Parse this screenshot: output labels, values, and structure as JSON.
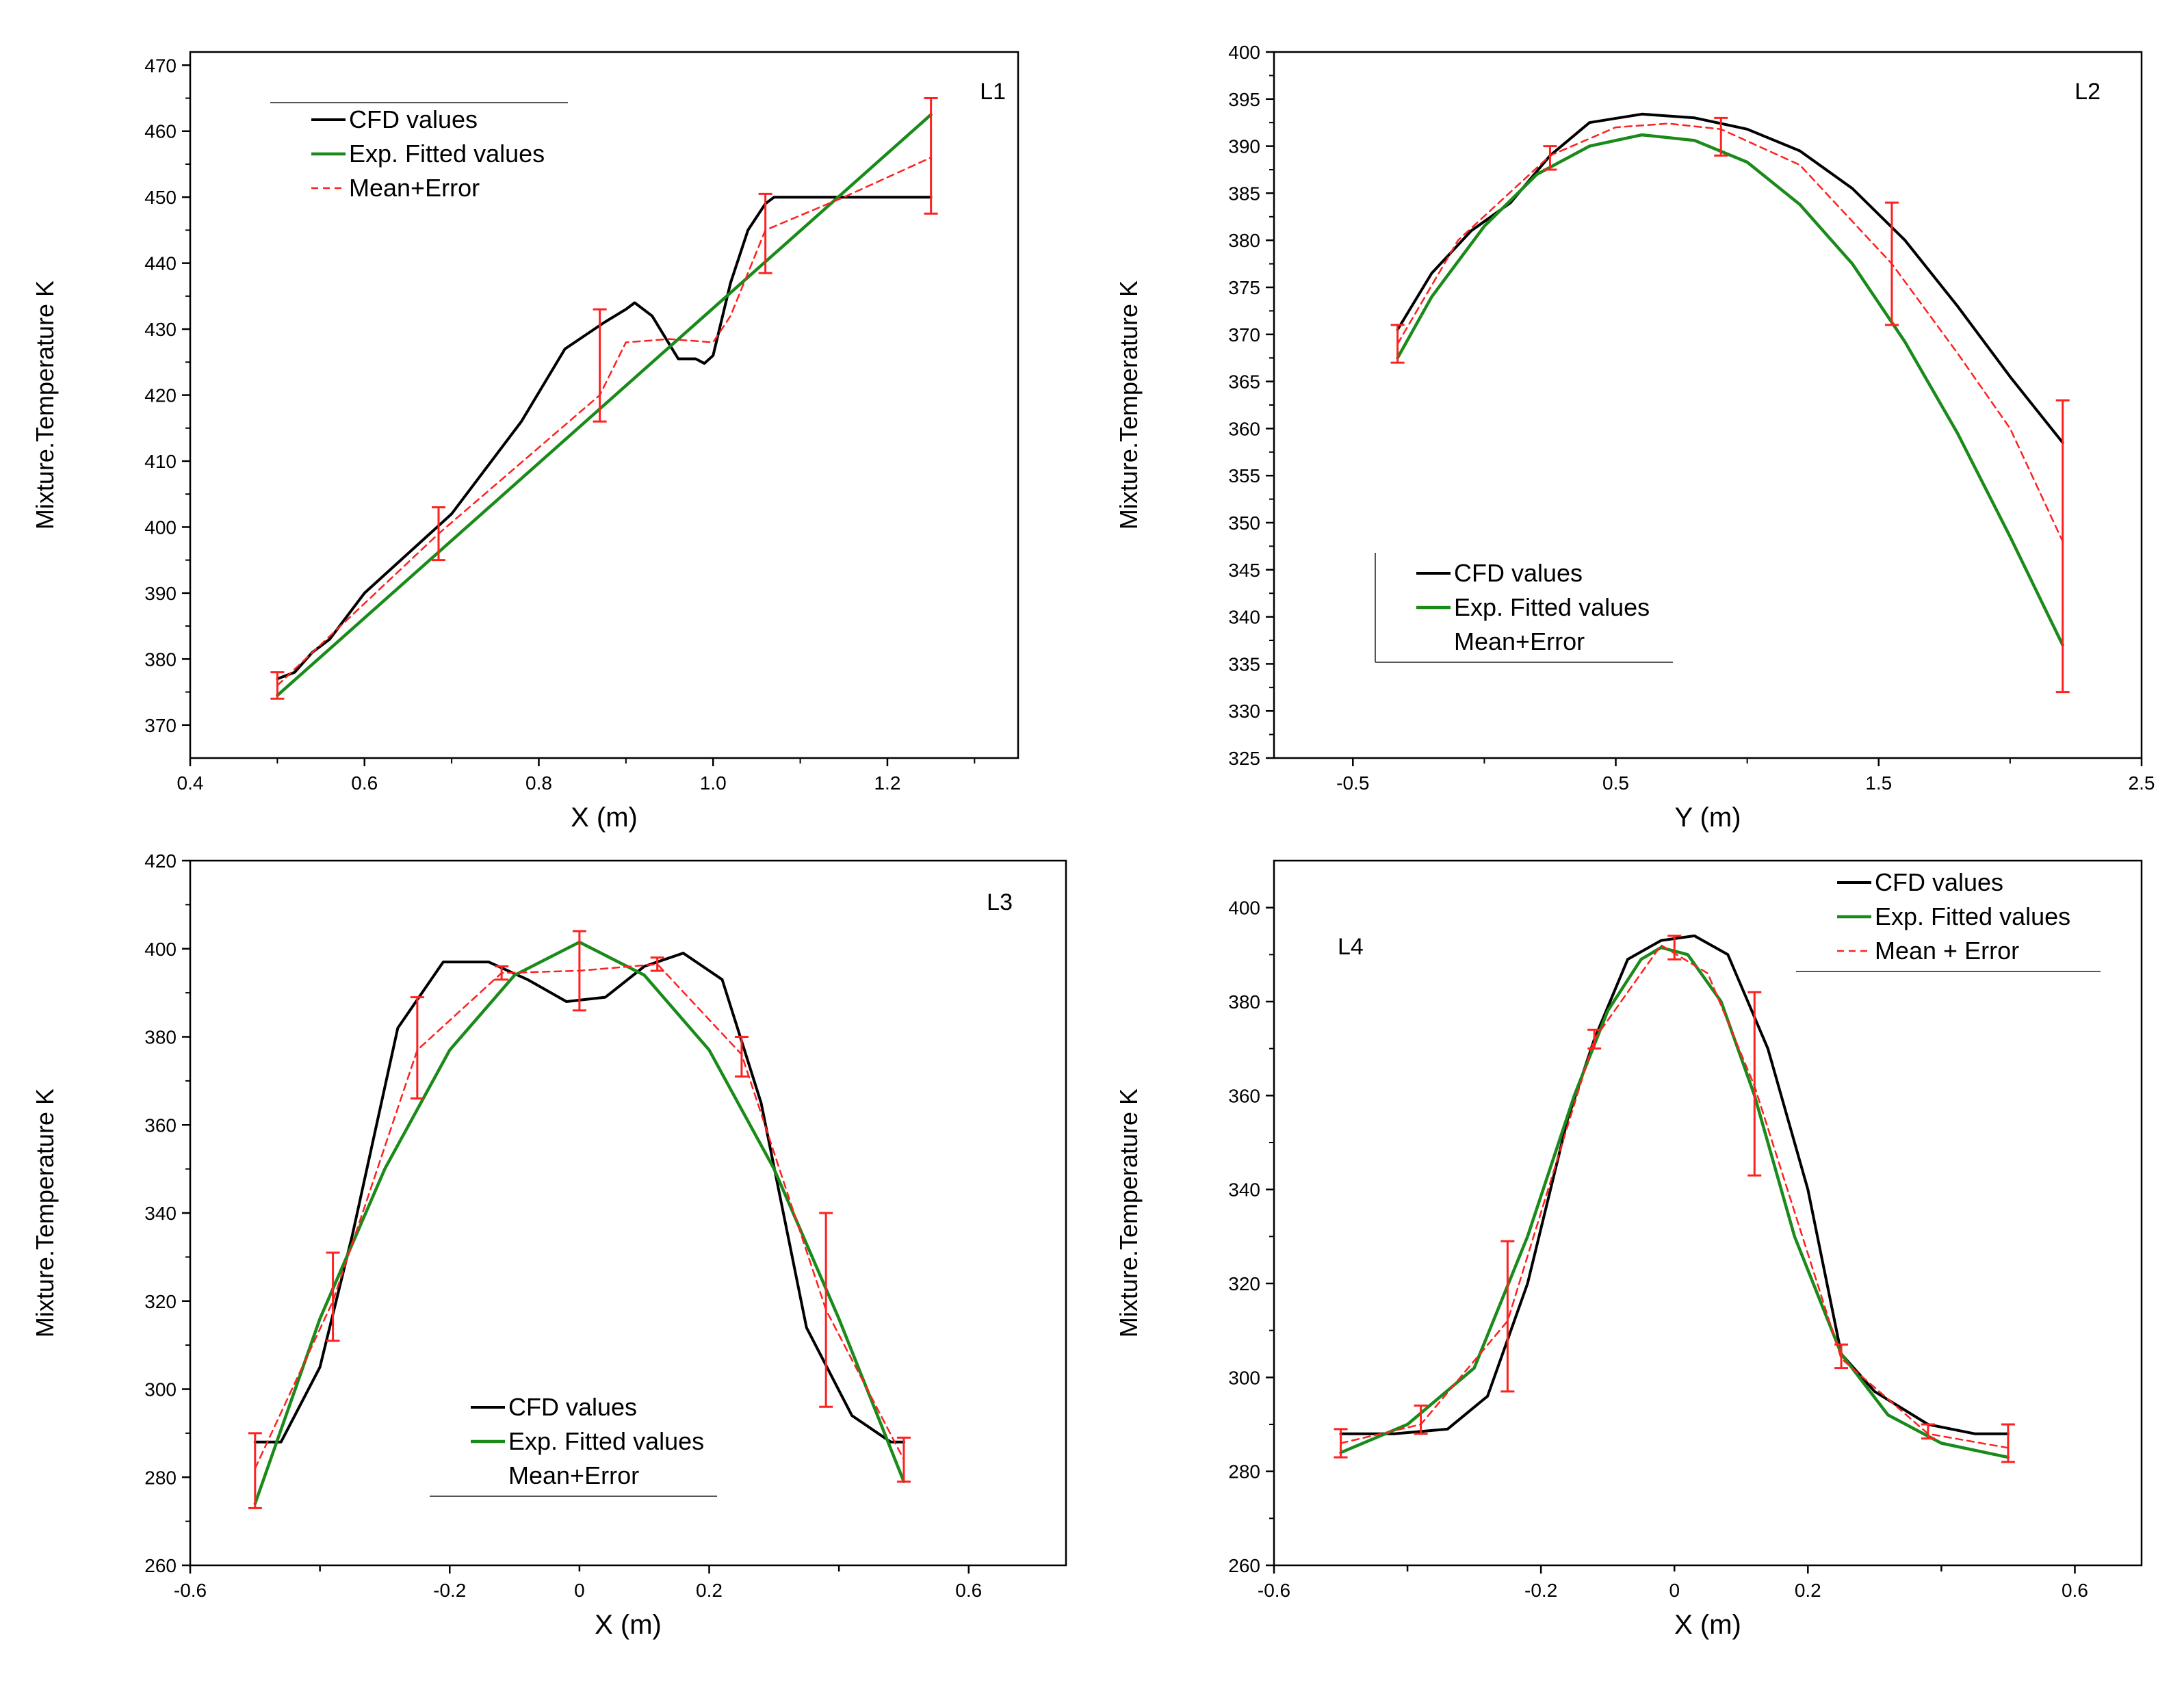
{
  "panels": [
    {
      "id": "L1",
      "panel_label": "L1",
      "legend_pos": "top-left",
      "legend": [
        {
          "label": "CFD values",
          "key": "cfd"
        },
        {
          "label": "Exp. Fitted values",
          "key": "exp"
        },
        {
          "label": "Mean+Error",
          "key": "mean"
        }
      ]
    },
    {
      "id": "L2",
      "panel_label": "L2",
      "legend_pos": "bottom-left",
      "legend": [
        {
          "label": "CFD values",
          "key": "cfd"
        },
        {
          "label": "Exp. Fitted values",
          "key": "exp"
        },
        {
          "label": "Mean+Error",
          "key": "mean"
        }
      ]
    },
    {
      "id": "L3",
      "panel_label": "L3",
      "legend_pos": "bottom-center",
      "legend": [
        {
          "label": "CFD values",
          "key": "cfd"
        },
        {
          "label": "Exp. Fitted values",
          "key": "exp"
        },
        {
          "label": "Mean+Error",
          "key": "mean"
        }
      ]
    },
    {
      "id": "L4",
      "panel_label": "L4",
      "legend_pos": "top-right",
      "legend": [
        {
          "label": "CFD values",
          "key": "cfd"
        },
        {
          "label": "Exp. Fitted values",
          "key": "exp"
        },
        {
          "label": "Mean + Error",
          "key": "mean"
        }
      ]
    }
  ],
  "colors": {
    "cfd": "#000000",
    "exp": "#1a8a1a",
    "mean": "#ff2020",
    "error_bar": "#ff2020",
    "axis": "#000000"
  },
  "chart_data": [
    {
      "type": "line",
      "panel": "L1",
      "xlabel": "X (m)",
      "ylabel": "Mixture.Temperature K",
      "xlim": [
        0.4,
        1.35
      ],
      "ylim": [
        365,
        472
      ],
      "xticks": [
        0.4,
        0.6,
        0.8,
        1.0,
        1.2
      ],
      "xtick_labels": [
        "0.4",
        "0.6",
        "0.8",
        "1.0",
        "1.2"
      ],
      "yticks": [
        370,
        380,
        390,
        400,
        410,
        420,
        430,
        440,
        450,
        460,
        470
      ],
      "ytick_labels": [
        "370",
        "380",
        "390",
        "400",
        "410",
        "420",
        "430",
        "440",
        "450",
        "460",
        "470"
      ],
      "series": [
        {
          "name": "CFD values",
          "key": "cfd",
          "x": [
            0.5,
            0.52,
            0.54,
            0.56,
            0.6,
            0.65,
            0.7,
            0.78,
            0.83,
            0.875,
            0.9,
            0.91,
            0.93,
            0.96,
            0.98,
            0.99,
            1.0,
            1.02,
            1.04,
            1.06,
            1.07,
            1.1,
            1.25
          ],
          "y": [
            377,
            378,
            381,
            383,
            390,
            396,
            402,
            416,
            427,
            431,
            433,
            434,
            432,
            425.5,
            425.5,
            424.8,
            426,
            437,
            445,
            449,
            450,
            450,
            450
          ]
        },
        {
          "name": "Exp. Fitted values",
          "key": "exp",
          "x": [
            0.5,
            1.25
          ],
          "y": [
            374.5,
            462.5
          ]
        },
        {
          "name": "Mean+Error",
          "key": "mean",
          "x": [
            0.5,
            0.685,
            0.87,
            0.9,
            0.95,
            1.0,
            1.02,
            1.06,
            1.15,
            1.25
          ],
          "y": [
            376,
            399,
            420,
            428,
            428.5,
            428,
            432,
            445,
            450,
            456
          ]
        }
      ],
      "error_bars": {
        "x": [
          0.5,
          0.685,
          0.87,
          1.06,
          1.25
        ],
        "low": [
          374,
          395,
          416,
          438.5,
          447.5
        ],
        "high": [
          378,
          403,
          433,
          450.5,
          465
        ]
      }
    },
    {
      "type": "line",
      "panel": "L2",
      "xlabel": "Y (m)",
      "ylabel": "Mixture.Temperature K",
      "xlim": [
        -0.8,
        2.5
      ],
      "ylim": [
        325,
        400
      ],
      "xticks": [
        -0.5,
        0.5,
        1.5,
        2.5
      ],
      "xtick_labels": [
        "-0.5",
        "0.5",
        "1.5",
        "2.5"
      ],
      "yticks": [
        325,
        330,
        335,
        340,
        345,
        350,
        355,
        360,
        365,
        370,
        375,
        380,
        385,
        390,
        395,
        400
      ],
      "ytick_labels": [
        "325",
        "330",
        "335",
        "340",
        "345",
        "350",
        "355",
        "360",
        "365",
        "370",
        "375",
        "380",
        "385",
        "390",
        "395",
        "400"
      ],
      "series": [
        {
          "name": "CFD values",
          "key": "cfd",
          "x": [
            -0.33,
            -0.2,
            -0.05,
            0.1,
            0.25,
            0.4,
            0.6,
            0.8,
            1.0,
            1.2,
            1.4,
            1.6,
            1.8,
            2.0,
            2.2
          ],
          "y": [
            370.5,
            376.5,
            381,
            384,
            389,
            392.5,
            393.4,
            393,
            391.8,
            389.5,
            385.5,
            380,
            373,
            365.5,
            358.5
          ]
        },
        {
          "name": "Exp. Fitted values",
          "key": "exp",
          "x": [
            -0.33,
            -0.2,
            0.0,
            0.2,
            0.4,
            0.6,
            0.8,
            1.0,
            1.2,
            1.4,
            1.6,
            1.8,
            2.0,
            2.2
          ],
          "y": [
            367.5,
            374,
            381.5,
            387,
            390,
            391.2,
            390.6,
            388.3,
            383.8,
            377.5,
            369.2,
            359.5,
            348.5,
            337
          ]
        },
        {
          "name": "Mean+Error",
          "key": "mean",
          "x": [
            -0.33,
            -0.1,
            0.25,
            0.5,
            0.7,
            0.9,
            1.2,
            1.55,
            1.8,
            2.0,
            2.2
          ],
          "y": [
            369,
            380,
            389,
            392,
            392.4,
            391.8,
            388,
            377.5,
            368,
            360,
            348
          ]
        }
      ],
      "error_bars": {
        "x": [
          -0.33,
          0.25,
          0.9,
          1.55,
          2.2
        ],
        "low": [
          367,
          387.5,
          389,
          371,
          332
        ],
        "high": [
          371,
          390,
          393,
          384,
          363
        ]
      }
    },
    {
      "type": "line",
      "panel": "L3",
      "xlabel": "X (m)",
      "ylabel": "Mixture.Temperature K",
      "xlim": [
        -0.6,
        0.75
      ],
      "ylim": [
        260,
        420
      ],
      "xticks": [
        -0.6,
        -0.2,
        0.2,
        0.6
      ],
      "xtick_labels": [
        "-0.6",
        "-0.2",
        "0.2",
        "0.6"
      ],
      "minor_xticks": [
        -0.4,
        0.0,
        0.4
      ],
      "minor_xtick_labels": [
        "",
        "0",
        ""
      ],
      "yticks": [
        260,
        280,
        300,
        320,
        340,
        360,
        380,
        400,
        420
      ],
      "ytick_labels": [
        "260",
        "280",
        "300",
        "320",
        "340",
        "360",
        "380",
        "400",
        "420"
      ],
      "series": [
        {
          "name": "CFD values",
          "key": "cfd",
          "x": [
            -0.5,
            -0.46,
            -0.4,
            -0.35,
            -0.28,
            -0.21,
            -0.14,
            -0.08,
            -0.02,
            0.04,
            0.1,
            0.16,
            0.22,
            0.28,
            0.35,
            0.42,
            0.48,
            0.5
          ],
          "y": [
            288,
            288,
            305,
            335,
            382,
            397,
            397,
            393,
            388,
            389,
            396,
            399,
            393,
            365,
            314,
            294,
            288,
            288
          ]
        },
        {
          "name": "Exp. Fitted values",
          "key": "exp",
          "x": [
            -0.5,
            -0.4,
            -0.3,
            -0.2,
            -0.1,
            0.0,
            0.1,
            0.2,
            0.3,
            0.4,
            0.5
          ],
          "y": [
            274,
            316,
            350,
            377,
            394,
            401.5,
            394,
            377,
            350,
            316,
            279
          ]
        },
        {
          "name": "Mean+Error",
          "key": "mean",
          "x": [
            -0.5,
            -0.38,
            -0.25,
            -0.12,
            0.0,
            0.12,
            0.25,
            0.38,
            0.5
          ],
          "y": [
            282,
            320,
            377,
            394.5,
            395,
            396.5,
            376,
            318,
            284
          ]
        }
      ],
      "error_bars": {
        "x": [
          -0.5,
          -0.38,
          -0.25,
          -0.12,
          0.0,
          0.12,
          0.25,
          0.38,
          0.5
        ],
        "low": [
          273,
          311,
          366,
          393,
          386,
          395,
          371,
          296,
          279
        ],
        "high": [
          290,
          331,
          389,
          396,
          404,
          398,
          380,
          340,
          289
        ]
      }
    },
    {
      "type": "line",
      "panel": "L4",
      "xlabel": "X (m)",
      "ylabel": "Mixture.Temperature K",
      "xlim": [
        -0.6,
        0.7
      ],
      "ylim": [
        260,
        410
      ],
      "xticks": [
        -0.6,
        -0.2,
        0.2,
        0.6
      ],
      "xtick_labels": [
        "-0.6",
        "-0.2",
        "0.2",
        "0.6"
      ],
      "minor_xticks": [
        -0.4,
        0.0,
        0.4
      ],
      "minor_xtick_labels": [
        "",
        "0",
        ""
      ],
      "yticks": [
        260,
        280,
        300,
        320,
        340,
        360,
        380,
        400
      ],
      "ytick_labels": [
        "260",
        "280",
        "300",
        "320",
        "340",
        "360",
        "380",
        "400"
      ],
      "series": [
        {
          "name": "CFD values",
          "key": "cfd",
          "x": [
            -0.5,
            -0.42,
            -0.34,
            -0.28,
            -0.22,
            -0.16,
            -0.12,
            -0.07,
            -0.02,
            0.03,
            0.08,
            0.14,
            0.2,
            0.25,
            0.3,
            0.38,
            0.45,
            0.5
          ],
          "y": [
            288,
            288,
            289,
            296,
            320,
            355,
            372,
            389,
            393,
            394,
            390,
            370,
            340,
            305,
            297,
            290,
            288,
            288
          ]
        },
        {
          "name": "Exp. Fitted values",
          "key": "exp",
          "x": [
            -0.5,
            -0.4,
            -0.3,
            -0.22,
            -0.15,
            -0.1,
            -0.05,
            -0.02,
            0.02,
            0.07,
            0.12,
            0.18,
            0.25,
            0.32,
            0.4,
            0.5
          ],
          "y": [
            284,
            290,
            302,
            330,
            360,
            378,
            389,
            391.5,
            390,
            380,
            360,
            330,
            305,
            292,
            286,
            283
          ]
        },
        {
          "name": "Mean+Error",
          "key": "mean",
          "x": [
            -0.5,
            -0.38,
            -0.25,
            -0.12,
            -0.02,
            0.05,
            0.12,
            0.25,
            0.38,
            0.5
          ],
          "y": [
            286,
            290,
            312,
            372,
            392,
            386,
            362,
            304,
            288,
            285
          ]
        }
      ],
      "error_bars": {
        "x": [
          -0.5,
          -0.38,
          -0.25,
          -0.12,
          0.0,
          0.12,
          0.25,
          0.38,
          0.5
        ],
        "low": [
          283,
          288,
          297,
          370,
          389,
          343,
          302,
          287,
          282
        ],
        "high": [
          289,
          294,
          329,
          374,
          394,
          382,
          307,
          290,
          290
        ]
      }
    }
  ]
}
